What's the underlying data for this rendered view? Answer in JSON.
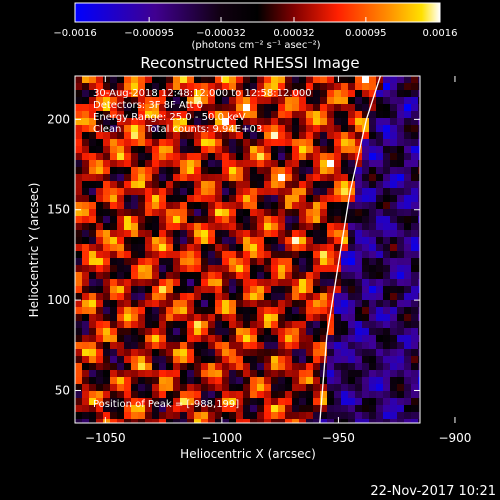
{
  "chart_data": {
    "type": "heatmap",
    "title": "Reconstructed RHESSI Image",
    "xlabel": "Heliocentric X (arcsec)",
    "ylabel": "Heliocentric Y (arcsec)",
    "xlim": [
      -1063,
      -915
    ],
    "ylim": [
      32,
      224
    ],
    "x_ticks": [
      -1050,
      -1000,
      -950,
      -900
    ],
    "x_tick_labels": [
      "−1050",
      "−1000",
      "−950",
      "−900"
    ],
    "y_ticks": [
      50,
      100,
      150,
      200
    ],
    "y_tick_labels": [
      "50",
      "100",
      "150",
      "200"
    ],
    "colorbar": {
      "min": -0.0016,
      "max": 0.0016,
      "ticks": [
        -0.0016,
        -0.00095,
        -0.00032,
        0.00032,
        0.00095,
        0.0016
      ],
      "tick_labels": [
        "−0.0016",
        "−0.00095",
        "−0.00032",
        "0.00032",
        "0.00095",
        "0.0016"
      ],
      "units_label": "(photons cm⁻² s⁻¹ asec⁻²)",
      "colormap": [
        "#0000ff",
        "#400080",
        "#000000",
        "#8b0000",
        "#ff3000",
        "#ff9000",
        "#ffe000",
        "#ffffff"
      ]
    },
    "annotations": {
      "time": "30-Aug-2018 12:48:12.000 to 12:58:12.000",
      "detectors": "Detectors: 3F 8F  Att 0",
      "energy": "Energy Range: 25.0 - 50.0 keV",
      "method": "Clean",
      "counts": "Total counts: 9.94E+03",
      "peak": "Position of Peak = [-988,199]"
    },
    "limb": [
      [
        -958,
        32
      ],
      [
        -955,
        80
      ],
      [
        -950,
        120
      ],
      [
        -945,
        160
      ],
      [
        -938,
        200
      ],
      [
        -932,
        224
      ]
    ],
    "footer": "22-Nov-2017 10:21"
  }
}
